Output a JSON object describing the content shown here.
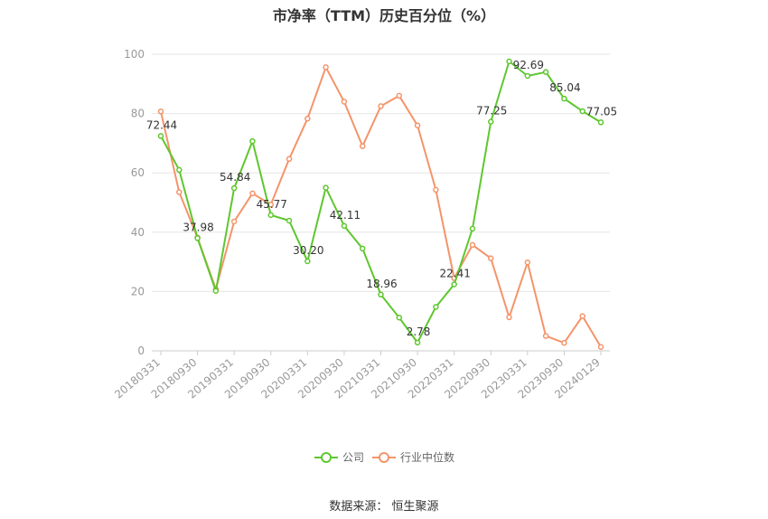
{
  "title": "市净率（TTM）历史百分位（%）",
  "source": "数据来源：   恒生聚源",
  "chart_data": {
    "type": "line",
    "title": "市净率（TTM）历史百分位（%）",
    "ylim": [
      0,
      100
    ],
    "yticks": [
      0,
      20,
      40,
      60,
      80,
      100
    ],
    "xtick_labels": [
      "20180331",
      "20180930",
      "20190331",
      "20190930",
      "20200331",
      "20200930",
      "20210331",
      "20210930",
      "20220331",
      "20220930",
      "20230331",
      "20230930",
      "20240129"
    ],
    "grid": true,
    "legend_position": "bottom",
    "series": [
      {
        "name": "公司",
        "color": "#5ec72e",
        "values": [
          72.44,
          61,
          37.98,
          20.2,
          54.84,
          70.7,
          45.77,
          43.9,
          30.2,
          55,
          42.11,
          34.5,
          18.96,
          11.2,
          2.78,
          14.8,
          22.41,
          41.2,
          77.25,
          97.6,
          92.69,
          94,
          85.04,
          80.8,
          77.05
        ],
        "labels": {
          "0": "72.44",
          "2": "37.98",
          "4": "54.84",
          "6": "45.77",
          "8": "30.20",
          "10": "42.11",
          "12": "18.96",
          "14": "2.78",
          "16": "22.41",
          "18": "77.25",
          "20": "92.69",
          "22": "85.04",
          "24": "77.05"
        }
      },
      {
        "name": "行业中位数",
        "color": "#f4946a",
        "values": [
          80.7,
          53.5,
          38.2,
          20.8,
          43.6,
          53.1,
          49.3,
          64.7,
          78.3,
          95.6,
          84,
          69,
          82.5,
          86,
          76,
          54.3,
          24.5,
          35.7,
          31.2,
          11.3,
          29.8,
          5,
          2.7,
          11.7,
          1.3
        ]
      }
    ]
  }
}
